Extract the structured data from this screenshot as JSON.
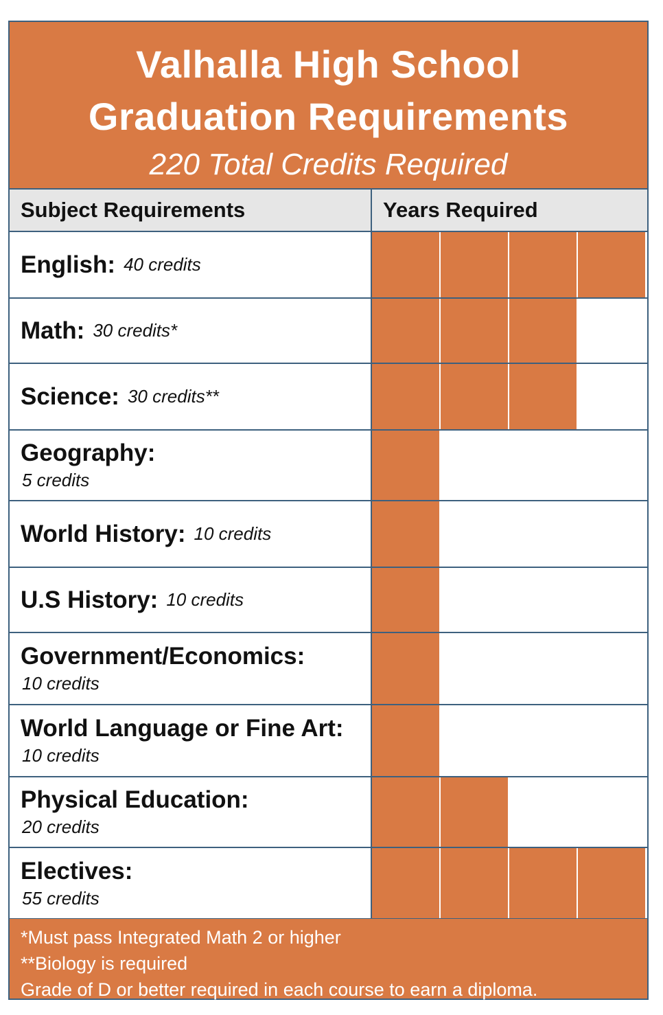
{
  "banner": {
    "line1": "Valhalla High School",
    "line2": "Graduation Requirements",
    "line3": "220 Total Credits Required"
  },
  "columns": {
    "subject": "Subject Requirements",
    "years": "Years Required"
  },
  "accent_color": "#d97a44",
  "border_color": "#3d607e",
  "max_years": 4,
  "rows": [
    {
      "name": "English:",
      "credits": "40 credits",
      "years": 4
    },
    {
      "name": "Math:",
      "credits": "30 credits*",
      "years": 3
    },
    {
      "name": "Science:",
      "credits": "30 credits**",
      "years": 3
    },
    {
      "name": "Geography:",
      "credits": "5 credits",
      "years": 1
    },
    {
      "name": "World History:",
      "credits": "10 credits",
      "years": 1
    },
    {
      "name": "U.S History:",
      "credits": "10 credits",
      "years": 1
    },
    {
      "name": "Government/Economics:",
      "credits": "10 credits",
      "years": 1
    },
    {
      "name": "World Language or Fine Art:",
      "credits": "10 credits",
      "years": 1
    },
    {
      "name": "Physical Education:",
      "credits": "20 credits",
      "years": 2
    },
    {
      "name": "Electives:",
      "credits": "55 credits",
      "years": 4
    }
  ],
  "footnotes": [
    "*Must pass Integrated Math 2 or higher",
    "**Biology is required",
    "Grade of D or better required in each course to earn a diploma."
  ]
}
